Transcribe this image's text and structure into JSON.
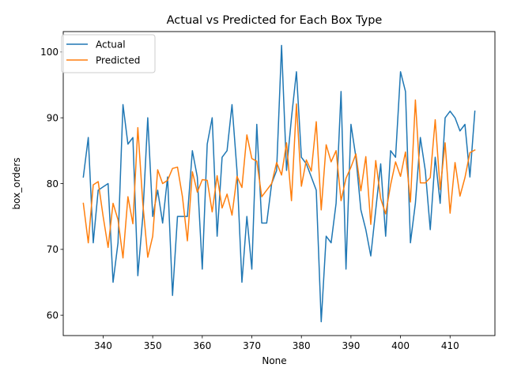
{
  "chart_data": {
    "type": "line",
    "title": "Actual vs Predicted for Each Box Type",
    "xlabel": "None",
    "ylabel": "box_orders",
    "xlim": [
      331.95,
      419.05
    ],
    "ylim": [
      56.9,
      103.1
    ],
    "xticks": [
      340,
      350,
      360,
      370,
      380,
      390,
      400,
      410
    ],
    "yticks": [
      60,
      70,
      80,
      90,
      100
    ],
    "grid": false,
    "legend": "top-left",
    "x": [
      336,
      337,
      338,
      339,
      340,
      341,
      342,
      343,
      344,
      345,
      346,
      347,
      348,
      349,
      350,
      351,
      352,
      353,
      354,
      355,
      356,
      357,
      358,
      359,
      360,
      361,
      362,
      363,
      364,
      365,
      366,
      367,
      368,
      369,
      370,
      371,
      372,
      373,
      374,
      375,
      376,
      377,
      378,
      379,
      380,
      381,
      382,
      383,
      384,
      385,
      386,
      387,
      388,
      389,
      390,
      391,
      392,
      393,
      394,
      395,
      396,
      397,
      398,
      399,
      400,
      401,
      402,
      403,
      404,
      405,
      406,
      407,
      408,
      409,
      410,
      411,
      412,
      413,
      414,
      415
    ],
    "series": [
      {
        "name": "Actual",
        "color": "#1f77b4",
        "values": [
          81,
          87,
          71,
          79,
          79.5,
          80,
          65,
          71,
          92,
          86,
          87,
          66,
          75,
          90,
          75,
          79,
          74,
          81,
          63,
          75,
          75,
          75,
          85,
          81,
          67,
          86,
          90,
          72,
          84,
          85,
          92,
          82,
          65,
          75,
          67,
          89,
          74,
          74,
          80,
          82,
          101,
          82,
          90,
          97,
          84,
          83,
          81,
          79,
          59,
          72,
          71,
          77,
          94,
          67,
          89,
          84,
          76,
          73,
          69,
          76,
          83,
          72,
          85,
          84,
          97,
          94,
          71,
          77,
          87,
          82,
          73,
          84,
          77,
          90,
          91,
          90,
          88,
          89,
          81,
          91
        ]
      },
      {
        "name": "Predicted",
        "color": "#ff7f0e",
        "values": [
          77,
          71,
          79.8,
          80.3,
          75,
          70.3,
          77,
          74.5,
          68.7,
          78,
          73.9,
          88.5,
          77,
          68.8,
          72,
          82.1,
          80,
          80.5,
          82.3,
          82.5,
          78,
          71.3,
          81.8,
          78.7,
          80.6,
          80.5,
          75.7,
          81.2,
          76.3,
          78.4,
          75.2,
          81.1,
          79.4,
          87.4,
          83.8,
          83.4,
          78,
          79,
          80,
          83.2,
          81.3,
          86.2,
          77.4,
          92.1,
          79.6,
          83.6,
          81.9,
          89.4,
          76,
          85.9,
          83.3,
          85,
          77.4,
          80.8,
          82.5,
          84.5,
          78.9,
          84.1,
          73.8,
          83.5,
          77.7,
          75.4,
          79.8,
          83.3,
          81.1,
          84.8,
          77.2,
          92.7,
          80.1,
          80.1,
          80.9,
          89.7,
          79.1,
          86.2,
          75.5,
          83.2,
          78.1,
          80.9,
          84.7,
          85.1
        ]
      }
    ]
  }
}
